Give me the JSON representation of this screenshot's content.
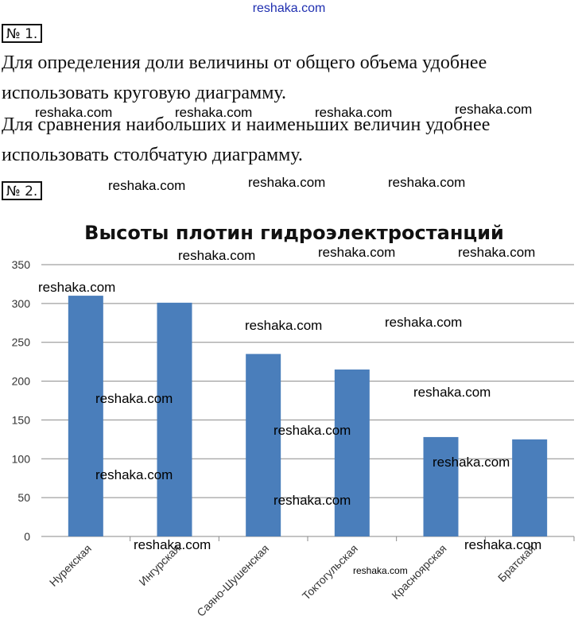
{
  "header": {
    "site": "reshaka.com",
    "site_color": "#1f2fb0"
  },
  "task1": {
    "label": "№ 1.",
    "lines": [
      "Для определения доли величины от общего объема удобнее",
      "использовать круговую диаграмму.",
      "Для сравнения наибольших и наименьших величин удобнее",
      "использовать столбчатую диаграмму."
    ]
  },
  "task2": {
    "label": "№ 2."
  },
  "watermark": "reshaka.com",
  "chart_data": {
    "type": "bar",
    "title": "Высоты плотин гидроэлектростанций",
    "xlabel": "",
    "ylabel": "",
    "categories": [
      "Нурекская",
      "Ингурская",
      "Саяно-Шушенская",
      "Токтогульская",
      "Красноярская",
      "Братская"
    ],
    "values": [
      310,
      301,
      235,
      215,
      128,
      125
    ],
    "ylim": [
      0,
      350
    ],
    "yticks": [
      "0",
      "50",
      "100",
      "150",
      "200",
      "250",
      "300",
      "350"
    ],
    "bar_color": "#4a7ebb",
    "grid": true,
    "legend": "none"
  }
}
